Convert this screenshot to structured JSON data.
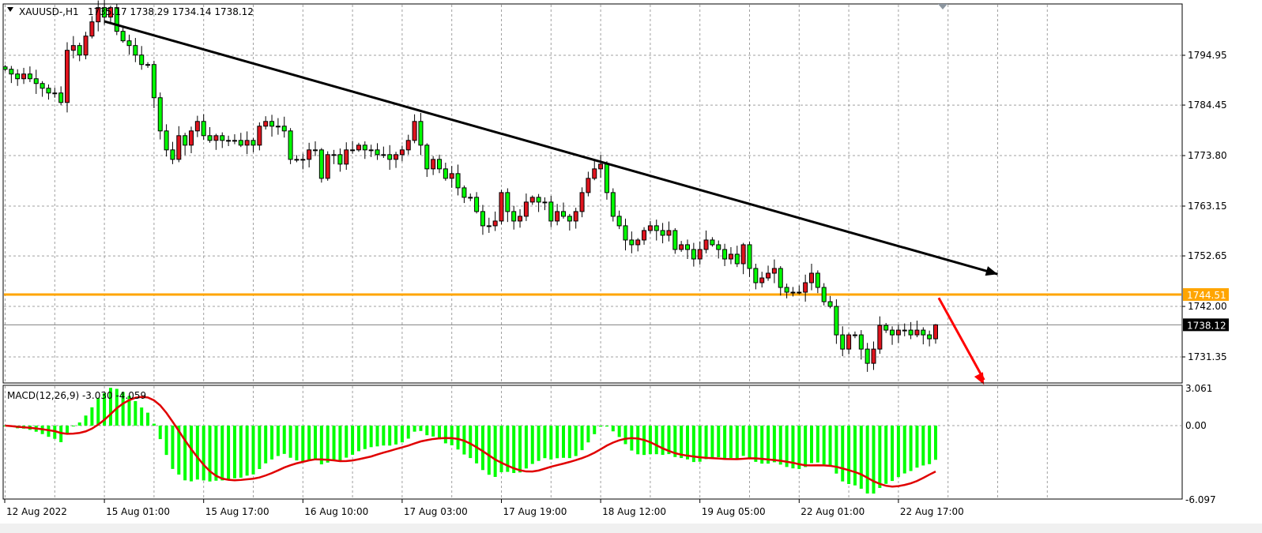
{
  "header": {
    "symbol": "XAUUSD-,H1",
    "ohlc": "1735.17 1738.29 1734.14 1738.12",
    "menu_icon": "triangle-down-icon"
  },
  "macd_label": "MACD(12,26,9) -3.030 -4.059",
  "colors": {
    "bull_body": "#e0141e",
    "bear_body": "#00ff00",
    "macd_histogram": "#00ff00",
    "macd_signal": "#e00000",
    "level_line": "#ffa500",
    "trendline": "#000000",
    "arrow": "#ff0000",
    "bid_line": "#808080",
    "grid": "#a0a0a0"
  },
  "chart_data": [
    {
      "type": "candlestick",
      "symbol": "XAUUSD-",
      "timeframe": "H1",
      "last_bar": {
        "open": 1735.17,
        "high": 1738.29,
        "low": 1734.14,
        "close": 1738.12
      },
      "closes": [
        1792,
        1791,
        1790,
        1791,
        1790,
        1789,
        1788,
        1787,
        1787,
        1785,
        1796,
        1797,
        1795,
        1799,
        1802,
        1805,
        1803,
        1805,
        1800,
        1798,
        1797,
        1795,
        1793,
        1793,
        1786,
        1779,
        1775,
        1773,
        1778,
        1776,
        1779,
        1781,
        1778,
        1777,
        1778,
        1777,
        1777,
        1777,
        1776,
        1777,
        1776,
        1780,
        1781,
        1780,
        1780,
        1779,
        1773,
        1773,
        1773,
        1775,
        1775,
        1769,
        1774,
        1774,
        1772,
        1775,
        1775,
        1776,
        1775,
        1775,
        1774,
        1774,
        1773,
        1774,
        1775,
        1777,
        1781,
        1776,
        1771,
        1773,
        1771,
        1769,
        1770,
        1767,
        1765,
        1765,
        1762,
        1759,
        1759,
        1760,
        1766,
        1762,
        1760,
        1761,
        1764,
        1765,
        1764,
        1764,
        1760,
        1762,
        1761,
        1760,
        1762,
        1766,
        1769,
        1771,
        1772,
        1766,
        1761,
        1759,
        1756,
        1755,
        1756,
        1758,
        1759,
        1758,
        1757,
        1758,
        1754,
        1755,
        1754,
        1752,
        1754,
        1756,
        1755,
        1754,
        1752,
        1753,
        1751,
        1755,
        1750,
        1747,
        1748,
        1749,
        1750,
        1746,
        1745,
        1745,
        1745,
        1747,
        1749,
        1746,
        1743,
        1742,
        1736,
        1733,
        1736,
        1736,
        1733,
        1730,
        1733,
        1738,
        1737,
        1736,
        1737,
        1737,
        1736,
        1737,
        1736,
        1735.17,
        1738.12
      ],
      "price_axis": {
        "ticks": [
          "1794.95",
          "1784.45",
          "1773.80",
          "1763.15",
          "1752.65",
          "1742.00",
          "1731.35"
        ],
        "range": [
          1725.0,
          1807.6
        ]
      },
      "time_axis": {
        "ticks": [
          "12 Aug 2022",
          "15 Aug 01:00",
          "15 Aug 17:00",
          "16 Aug 10:00",
          "17 Aug 03:00",
          "17 Aug 19:00",
          "18 Aug 12:00",
          "19 Aug 05:00",
          "22 Aug 01:00",
          "22 Aug 17:00"
        ]
      },
      "horizontal_level": {
        "price": 1744.51,
        "label": "1744.51"
      },
      "bid_line": {
        "price": 1738.12,
        "label": "1738.12"
      },
      "trendline": {
        "from": {
          "bar": 16,
          "price": 1802.1
        },
        "to": {
          "bar": 160,
          "price": 1748.8
        }
      },
      "arrow": {
        "from": {
          "bar": 150.5,
          "price": 1743.8
        },
        "to": {
          "bar": 157.8,
          "price": 1725.5
        }
      },
      "grid": true
    },
    {
      "type": "bar+line",
      "indicator": "MACD(12,26,9)",
      "main_last": -3.03,
      "signal_last": -4.059,
      "value_axis": {
        "ticks": [
          "3.061",
          "0.00",
          "-6.097"
        ],
        "range": [
          -6.097,
          3.061
        ]
      }
    }
  ]
}
